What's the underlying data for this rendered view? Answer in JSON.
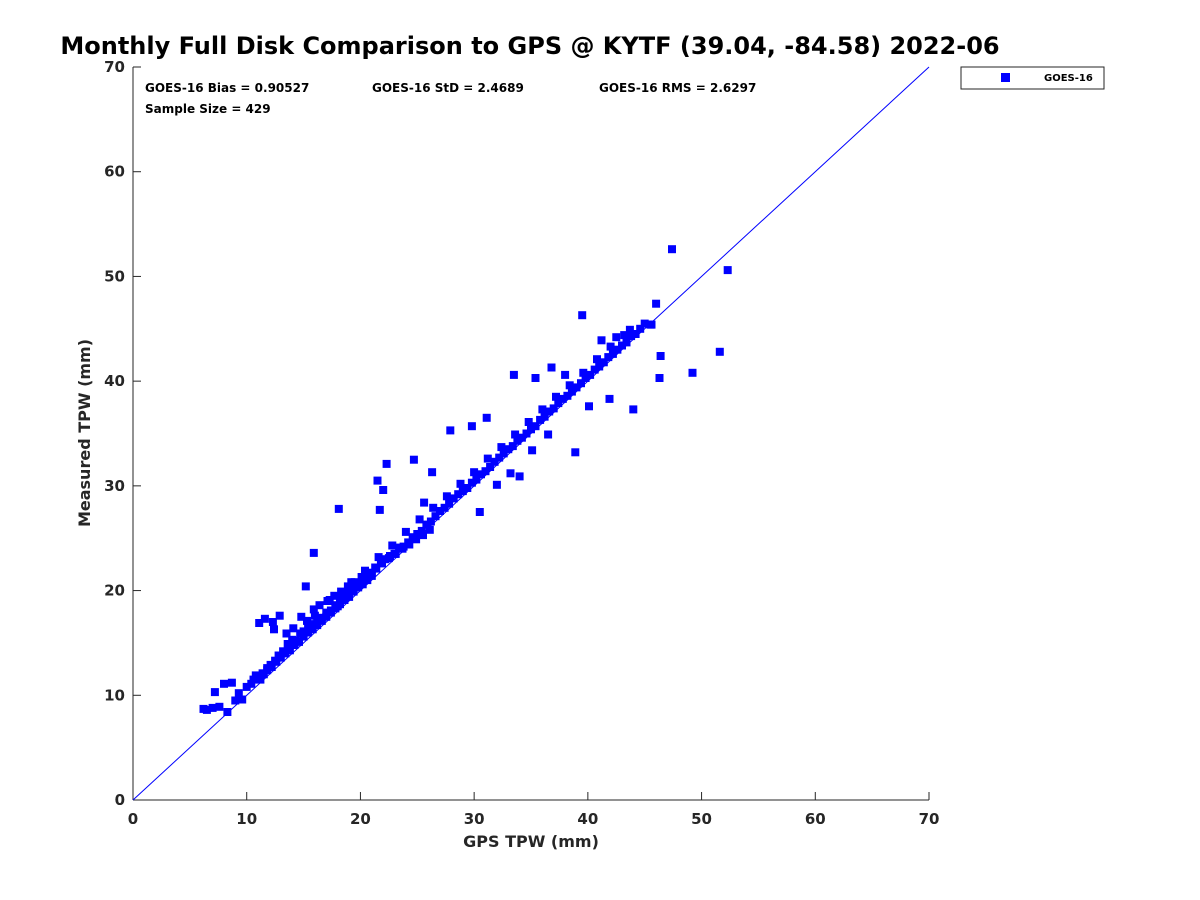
{
  "chart_data": {
    "type": "scatter",
    "title": "Monthly Full Disk Comparison to GPS @ KYTF (39.04, -84.58) 2022-06",
    "xlabel": "GPS TPW (mm)",
    "ylabel": "Measured TPW (mm)",
    "xlim": [
      0,
      70
    ],
    "ylim": [
      0,
      70
    ],
    "xticks": [
      "0",
      "10",
      "20",
      "30",
      "40",
      "50",
      "60",
      "70"
    ],
    "yticks": [
      "0",
      "10",
      "20",
      "30",
      "40",
      "50",
      "60",
      "70"
    ],
    "grid": false,
    "legend_position": "top-right",
    "reference_line": {
      "x": [
        0,
        70
      ],
      "y": [
        0,
        70
      ],
      "color": "#0000ff"
    },
    "annotations": {
      "bias": "GOES-16 Bias = 0.90527",
      "std": "GOES-16 StD = 2.4689",
      "rms": "GOES-16 RMS = 2.6297",
      "sample_size": "Sample Size = 429"
    },
    "series": [
      {
        "name": "GOES-16",
        "color": "#0000ff",
        "marker": "square",
        "x": [
          6.2,
          6.5,
          7.0,
          7.2,
          7.6,
          8.0,
          8.3,
          8.7,
          9.0,
          9.3,
          9.6,
          10.0,
          10.4,
          10.8,
          11.2,
          11.5,
          11.8,
          12.1,
          12.5,
          12.8,
          13.2,
          13.6,
          14.0,
          14.3,
          14.7,
          15.0,
          15.4,
          15.8,
          16.2,
          16.6,
          17.0,
          17.4,
          17.8,
          18.2,
          18.6,
          19.0,
          19.4,
          19.8,
          20.2,
          20.6,
          21.0,
          21.4,
          21.8,
          22.2,
          22.6,
          23.0,
          23.4,
          23.8,
          24.2,
          24.6,
          25.0,
          25.4,
          25.8,
          26.2,
          26.6,
          27.0,
          27.4,
          27.8,
          28.2,
          28.6,
          29.0,
          29.4,
          29.8,
          30.2,
          30.6,
          31.0,
          31.4,
          31.8,
          32.2,
          32.6,
          33.0,
          33.4,
          33.8,
          34.2,
          34.6,
          35.0,
          35.4,
          35.8,
          36.2,
          36.6,
          37.0,
          37.4,
          37.8,
          38.2,
          38.6,
          39.0,
          39.4,
          39.8,
          40.2,
          40.6,
          41.0,
          41.4,
          41.8,
          42.2,
          42.6,
          43.0,
          43.4,
          43.8,
          44.2,
          44.6,
          45.0,
          45.5,
          46.0,
          46.4,
          47.4,
          49.2,
          51.6,
          52.3,
          10.6,
          11.0,
          11.4,
          11.8,
          12.2,
          12.6,
          13.0,
          13.4,
          13.8,
          14.2,
          14.6,
          15.0,
          15.4,
          15.8,
          16.2,
          16.6,
          17.0,
          17.4,
          17.8,
          18.2,
          18.6,
          19.0,
          19.4,
          19.8,
          20.2,
          20.6,
          21.0,
          11.1,
          11.6,
          12.3,
          12.9,
          13.5,
          14.1,
          14.8,
          15.3,
          15.9,
          16.4,
          17.1,
          17.7,
          18.3,
          18.9,
          19.5,
          20.1,
          20.7,
          21.3,
          21.9,
          22.5,
          23.1,
          23.7,
          24.3,
          24.9,
          25.5,
          26.1,
          15.2,
          16.0,
          17.3,
          18.0,
          19.2,
          20.4,
          21.6,
          22.8,
          24.0,
          25.2,
          26.4,
          27.6,
          28.8,
          30.0,
          31.2,
          32.4,
          33.6,
          34.8,
          36.0,
          37.2,
          38.4,
          39.6,
          40.8,
          42.0,
          43.2,
          27.9,
          29.8,
          31.1,
          33.5,
          35.4,
          36.8,
          38.0,
          39.5,
          41.2,
          42.5,
          43.7,
          45.6,
          46.3,
          30.5,
          32.0,
          33.2,
          34.0,
          35.1,
          36.5,
          38.9,
          40.1,
          41.9,
          44.0,
          18.1,
          21.5,
          22.0,
          24.7,
          26.3,
          15.9,
          12.4,
          22.3,
          21.7,
          25.6
        ],
        "y": [
          8.7,
          8.6,
          8.8,
          10.3,
          8.9,
          11.1,
          8.4,
          11.2,
          9.5,
          10.2,
          9.6,
          10.8,
          11.1,
          11.9,
          11.5,
          12.0,
          12.6,
          12.9,
          13.3,
          13.8,
          14.2,
          14.9,
          15.3,
          15.2,
          15.9,
          16.1,
          16.4,
          16.8,
          17.2,
          17.4,
          17.9,
          18.1,
          18.6,
          19.3,
          19.7,
          20.1,
          20.3,
          20.6,
          21.1,
          21.5,
          21.7,
          22.1,
          22.6,
          23.0,
          23.3,
          23.5,
          24.1,
          24.2,
          24.6,
          25.1,
          25.4,
          25.7,
          26.3,
          26.6,
          27.1,
          27.6,
          27.9,
          28.3,
          28.8,
          29.2,
          29.5,
          29.8,
          30.3,
          30.6,
          31.1,
          31.4,
          31.8,
          32.3,
          32.7,
          33.1,
          33.5,
          33.8,
          34.3,
          34.6,
          35.0,
          35.4,
          35.7,
          36.3,
          36.6,
          37.1,
          37.4,
          37.9,
          38.3,
          38.6,
          39.0,
          39.4,
          39.8,
          40.3,
          40.6,
          41.1,
          41.4,
          41.8,
          42.3,
          42.6,
          43.0,
          43.4,
          43.7,
          44.3,
          44.5,
          45.0,
          45.5,
          45.4,
          47.4,
          42.4,
          52.6,
          40.8,
          42.8,
          50.6,
          11.5,
          11.6,
          12.1,
          12.4,
          12.7,
          13.2,
          13.6,
          14.0,
          14.3,
          14.8,
          15.1,
          15.6,
          16.0,
          16.3,
          16.7,
          17.1,
          17.5,
          17.9,
          18.3,
          18.7,
          19.1,
          19.4,
          19.9,
          20.3,
          20.6,
          21.0,
          21.4,
          16.9,
          17.3,
          17.0,
          17.6,
          15.9,
          16.4,
          17.5,
          17.1,
          18.2,
          18.6,
          19.0,
          19.5,
          19.9,
          20.4,
          20.8,
          21.3,
          21.7,
          22.2,
          22.6,
          23.1,
          23.5,
          24.0,
          24.4,
          24.9,
          25.3,
          25.8,
          20.4,
          17.6,
          19.1,
          18.5,
          20.8,
          21.9,
          23.2,
          24.3,
          25.6,
          26.8,
          27.9,
          29.0,
          30.2,
          31.3,
          32.6,
          33.7,
          34.9,
          36.1,
          37.3,
          38.5,
          39.6,
          40.8,
          42.1,
          43.3,
          44.4,
          35.3,
          35.7,
          36.5,
          40.6,
          40.3,
          41.3,
          40.6,
          46.3,
          43.9,
          44.2,
          44.9,
          45.4,
          40.3,
          27.5,
          30.1,
          31.2,
          30.9,
          33.4,
          34.9,
          33.2,
          37.6,
          38.3,
          37.3,
          27.8,
          30.5,
          29.6,
          32.5,
          31.3,
          23.6,
          16.3,
          32.1,
          27.7,
          28.4
        ]
      }
    ]
  },
  "legend": {
    "series_label": "GOES-16"
  }
}
